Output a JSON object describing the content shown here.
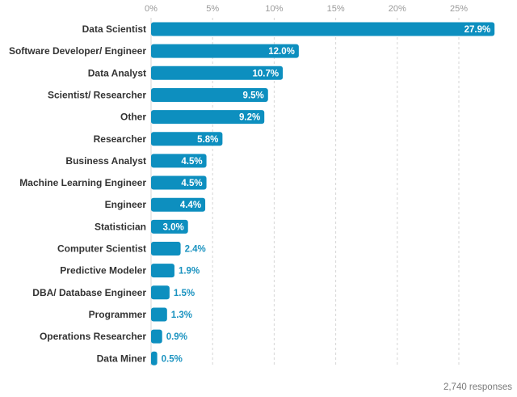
{
  "chart_data": {
    "type": "bar",
    "orientation": "horizontal",
    "categories": [
      "Data Scientist",
      "Software Developer/ Engineer",
      "Data Analyst",
      "Scientist/ Researcher",
      "Other",
      "Researcher",
      "Business Analyst",
      "Machine Learning Engineer",
      "Engineer",
      "Statistician",
      "Computer Scientist",
      "Predictive Modeler",
      "DBA/ Database Engineer",
      "Programmer",
      "Operations Researcher",
      "Data Miner"
    ],
    "values": [
      27.9,
      12.0,
      10.7,
      9.5,
      9.2,
      5.8,
      4.5,
      4.5,
      4.4,
      3.0,
      2.4,
      1.9,
      1.5,
      1.3,
      0.9,
      0.5
    ],
    "value_labels": [
      "27.9%",
      "12.0%",
      "10.7%",
      "9.5%",
      "9.2%",
      "5.8%",
      "4.5%",
      "4.5%",
      "4.4%",
      "3.0%",
      "2.4%",
      "1.9%",
      "1.5%",
      "1.3%",
      "0.9%",
      "0.5%"
    ],
    "xticks": [
      0,
      5,
      10,
      15,
      20,
      25
    ],
    "xtick_labels": [
      "0%",
      "5%",
      "10%",
      "15%",
      "20%",
      "25%"
    ],
    "xlim": [
      0,
      28
    ],
    "axis_position": "top",
    "grid": "vertical dashed",
    "bar_color": "#0d8fbf",
    "label_inside_color": "#ffffff",
    "label_outside_color": "#1b93c0",
    "title": "",
    "xlabel": "",
    "ylabel": ""
  },
  "footnote": "2,740 responses"
}
